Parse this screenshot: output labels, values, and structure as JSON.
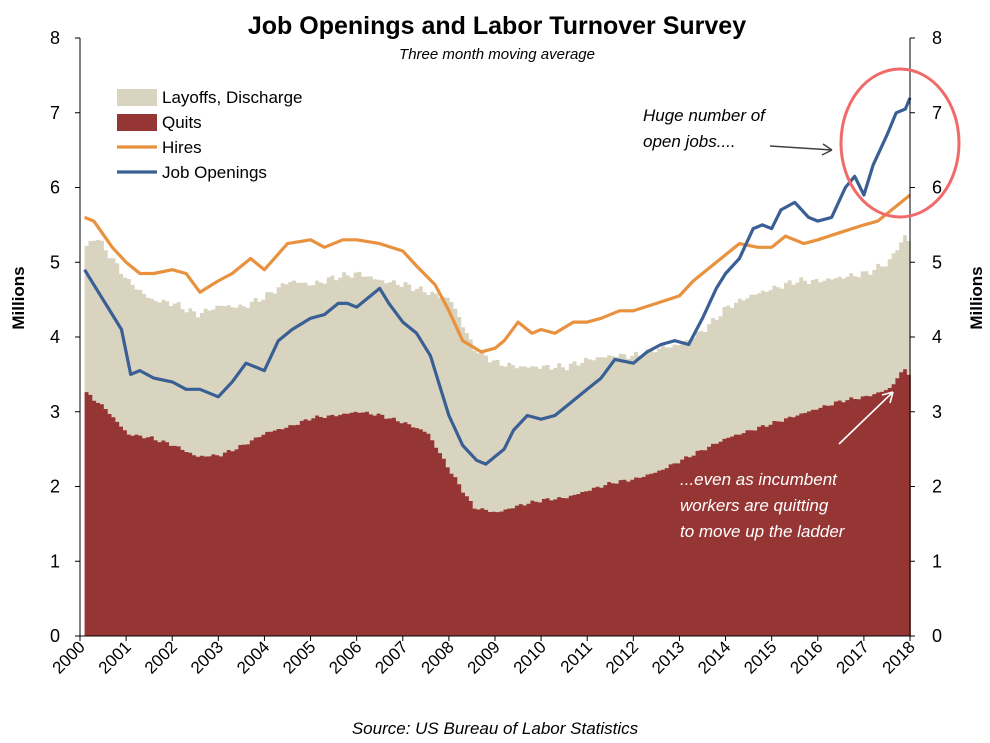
{
  "chart_data": {
    "type": "area",
    "title": "Job Openings and Labor Turnover Survey",
    "subtitle": "Three month moving average",
    "ylabel": "Millions",
    "ylabel_right": "Millions",
    "ylim": [
      0,
      8
    ],
    "yticks": [
      "0",
      "1",
      "2",
      "3",
      "4",
      "5",
      "6",
      "7",
      "8"
    ],
    "xlim": [
      2000,
      2018
    ],
    "xticks": [
      "2000",
      "2001",
      "2002",
      "2003",
      "2004",
      "2005",
      "2006",
      "2007",
      "2008",
      "2009",
      "2010",
      "2011",
      "2012",
      "2013",
      "2014",
      "2015",
      "2016",
      "2017",
      "2018"
    ],
    "grid": false,
    "legend_position": "top-left",
    "source": "Source: US Bureau of Labor Statistics",
    "colors": {
      "layoffs": "#d9d4c0",
      "quits": "#963634",
      "hires": "#e8913f",
      "openings": "#3a5f94",
      "circle": "#f06a6a"
    },
    "series": [
      {
        "name": "Quits",
        "kind": "area-bottom",
        "x": [
          2000.1,
          2000.5,
          2001.0,
          2001.5,
          2002.0,
          2002.5,
          2003.0,
          2003.5,
          2004.0,
          2004.5,
          2005.0,
          2005.5,
          2006.0,
          2006.5,
          2007.0,
          2007.5,
          2008.0,
          2008.5,
          2009.0,
          2009.5,
          2010.0,
          2010.5,
          2011.0,
          2011.5,
          2012.0,
          2012.5,
          2013.0,
          2013.5,
          2014.0,
          2014.5,
          2015.0,
          2015.5,
          2016.0,
          2016.5,
          2017.0,
          2017.5,
          2017.85,
          2018.0
        ],
        "values": [
          3.25,
          3.05,
          2.7,
          2.65,
          2.55,
          2.4,
          2.42,
          2.55,
          2.72,
          2.8,
          2.92,
          2.95,
          3.0,
          2.95,
          2.85,
          2.72,
          2.2,
          1.72,
          1.65,
          1.75,
          1.82,
          1.85,
          1.95,
          2.05,
          2.1,
          2.2,
          2.35,
          2.5,
          2.65,
          2.75,
          2.85,
          2.95,
          3.05,
          3.15,
          3.2,
          3.3,
          3.58,
          3.45
        ]
      },
      {
        "name": "Layoffs, Discharge",
        "kind": "area-stacked",
        "x": [
          2000.1,
          2000.3,
          2000.6,
          2001.0,
          2001.5,
          2002.0,
          2002.5,
          2003.0,
          2003.5,
          2004.0,
          2004.5,
          2005.0,
          2005.5,
          2006.0,
          2006.5,
          2007.0,
          2007.5,
          2008.0,
          2008.5,
          2009.0,
          2009.5,
          2010.0,
          2010.5,
          2011.0,
          2011.5,
          2012.0,
          2012.5,
          2013.0,
          2013.5,
          2014.0,
          2014.5,
          2015.0,
          2015.5,
          2016.0,
          2016.5,
          2017.0,
          2017.5,
          2017.85,
          2018.0
        ],
        "values": [
          5.2,
          5.35,
          5.1,
          4.75,
          4.5,
          4.45,
          4.3,
          4.42,
          4.4,
          4.55,
          4.75,
          4.7,
          4.8,
          4.85,
          4.75,
          4.7,
          4.6,
          4.5,
          3.85,
          3.65,
          3.6,
          3.6,
          3.6,
          3.7,
          3.75,
          3.75,
          3.85,
          3.9,
          4.1,
          4.4,
          4.55,
          4.65,
          4.75,
          4.75,
          4.8,
          4.85,
          5.0,
          5.35,
          5.25
        ]
      },
      {
        "name": "Hires",
        "kind": "line",
        "x": [
          2000.1,
          2000.3,
          2000.7,
          2001.0,
          2001.3,
          2001.6,
          2002.0,
          2002.3,
          2002.6,
          2003.0,
          2003.3,
          2003.7,
          2004.0,
          2004.5,
          2005.0,
          2005.3,
          2005.7,
          2006.0,
          2006.5,
          2007.0,
          2007.3,
          2007.7,
          2008.0,
          2008.3,
          2008.7,
          2009.0,
          2009.2,
          2009.5,
          2009.8,
          2010.0,
          2010.3,
          2010.7,
          2011.0,
          2011.3,
          2011.7,
          2012.0,
          2012.5,
          2013.0,
          2013.3,
          2013.7,
          2014.0,
          2014.3,
          2014.7,
          2015.0,
          2015.3,
          2015.7,
          2016.0,
          2016.5,
          2017.0,
          2017.3,
          2017.7,
          2018.0
        ],
        "values": [
          5.6,
          5.55,
          5.2,
          5.0,
          4.85,
          4.85,
          4.9,
          4.85,
          4.6,
          4.75,
          4.85,
          5.05,
          4.9,
          5.25,
          5.3,
          5.2,
          5.3,
          5.3,
          5.25,
          5.15,
          4.95,
          4.7,
          4.35,
          3.95,
          3.8,
          3.85,
          3.95,
          4.2,
          4.05,
          4.1,
          4.05,
          4.2,
          4.2,
          4.25,
          4.35,
          4.35,
          4.45,
          4.55,
          4.75,
          4.95,
          5.1,
          5.25,
          5.2,
          5.2,
          5.35,
          5.25,
          5.3,
          5.4,
          5.5,
          5.55,
          5.75,
          5.9
        ]
      },
      {
        "name": "Job Openings",
        "kind": "line",
        "x": [
          2000.1,
          2000.3,
          2000.6,
          2000.9,
          2001.1,
          2001.3,
          2001.6,
          2002.0,
          2002.3,
          2002.6,
          2003.0,
          2003.3,
          2003.6,
          2003.8,
          2004.0,
          2004.3,
          2004.6,
          2005.0,
          2005.3,
          2005.6,
          2005.8,
          2006.0,
          2006.3,
          2006.5,
          2006.7,
          2007.0,
          2007.3,
          2007.6,
          2008.0,
          2008.3,
          2008.6,
          2008.8,
          2009.0,
          2009.2,
          2009.4,
          2009.7,
          2010.0,
          2010.3,
          2010.6,
          2011.0,
          2011.3,
          2011.6,
          2012.0,
          2012.3,
          2012.6,
          2012.9,
          2013.2,
          2013.5,
          2013.8,
          2014.0,
          2014.3,
          2014.6,
          2014.8,
          2015.0,
          2015.2,
          2015.5,
          2015.8,
          2016.0,
          2016.3,
          2016.6,
          2016.8,
          2017.0,
          2017.2,
          2017.5,
          2017.7,
          2017.9,
          2018.0
        ],
        "values": [
          4.9,
          4.7,
          4.4,
          4.1,
          3.5,
          3.55,
          3.45,
          3.4,
          3.3,
          3.3,
          3.2,
          3.4,
          3.65,
          3.6,
          3.55,
          3.95,
          4.1,
          4.25,
          4.3,
          4.45,
          4.45,
          4.4,
          4.55,
          4.65,
          4.45,
          4.2,
          4.05,
          3.75,
          2.95,
          2.55,
          2.35,
          2.3,
          2.4,
          2.5,
          2.75,
          2.95,
          2.9,
          2.95,
          3.1,
          3.3,
          3.45,
          3.7,
          3.65,
          3.8,
          3.9,
          3.95,
          3.9,
          4.25,
          4.65,
          4.85,
          5.05,
          5.45,
          5.5,
          5.45,
          5.7,
          5.8,
          5.6,
          5.55,
          5.6,
          6.0,
          6.15,
          5.9,
          6.3,
          6.7,
          7.0,
          7.05,
          7.2
        ]
      }
    ],
    "annotations": [
      {
        "name": "openings-note",
        "lines": [
          "Huge number of",
          "open jobs...."
        ]
      },
      {
        "name": "quits-note",
        "lines": [
          "...even as incumbent",
          "workers are quitting",
          "to move up the ladder"
        ]
      }
    ]
  }
}
